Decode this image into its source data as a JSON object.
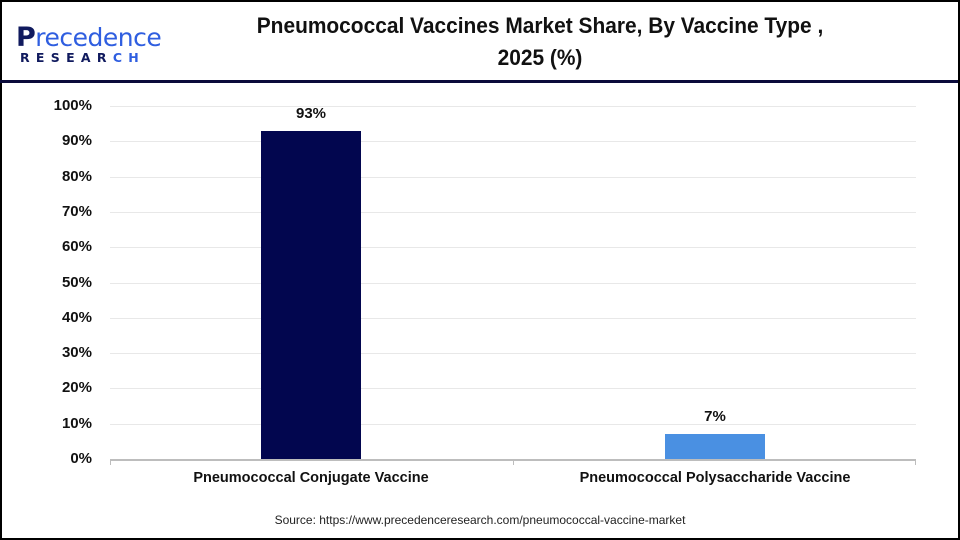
{
  "header": {
    "logo": {
      "line1_initial": "P",
      "line1_rest": "recedence",
      "line2_main": "RESEAR",
      "line2_accent": "CH"
    },
    "title_line1": "Pneumococcal Vaccines Market Share, By Vaccine Type ,",
    "title_line2": "2025 (%)"
  },
  "colors": {
    "bar_conjugate": "#02064f",
    "bar_polysaccharide": "#4a90e2",
    "divider": "#0b0b3b",
    "gridline": "#e8e8e8",
    "axis": "#bdbdbd"
  },
  "chart_data": {
    "type": "bar",
    "title": "Pneumococcal Vaccines Market Share, By Vaccine Type , 2025 (%)",
    "xlabel": "",
    "ylabel": "",
    "categories": [
      "Pneumococcal Conjugate Vaccine",
      "Pneumococcal Polysaccharide Vaccine"
    ],
    "values": [
      93,
      7
    ],
    "data_labels": [
      "93%",
      "7%"
    ],
    "ylim": [
      0,
      100
    ],
    "yticks": [
      "0%",
      "10%",
      "20%",
      "30%",
      "40%",
      "50%",
      "60%",
      "70%",
      "80%",
      "90%",
      "100%"
    ],
    "grid": true,
    "legend": null
  },
  "footer": {
    "source": "Source: https://www.precedenceresearch.com/pneumococcal-vaccine-market"
  }
}
